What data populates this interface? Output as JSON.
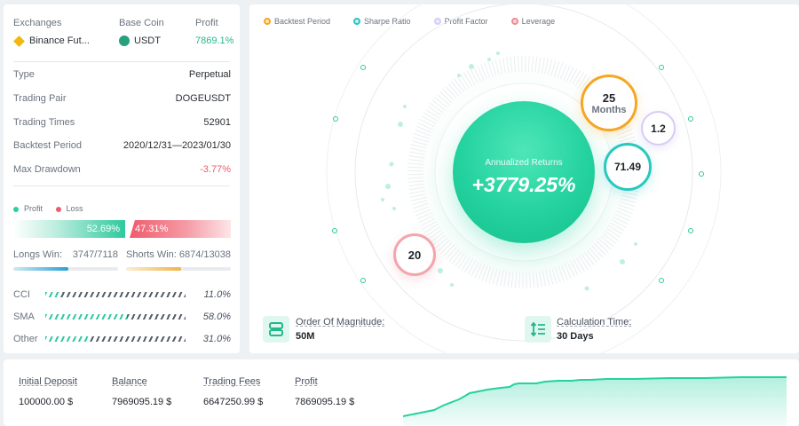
{
  "summary": {
    "headers": {
      "exchanges": "Exchanges",
      "base_coin": "Base Coin",
      "profit": "Profit"
    },
    "exchange": "Binance Fut...",
    "base_coin": "USDT",
    "profit": "7869.1%"
  },
  "details": [
    {
      "key": "Type",
      "value": "Perpetual"
    },
    {
      "key": "Trading Pair",
      "value": "DOGEUSDT"
    },
    {
      "key": "Trading Times",
      "value": "52901"
    },
    {
      "key": "Backtest Period",
      "value": "2020/12/31—2023/01/30"
    },
    {
      "key": "Max Drawdown",
      "value": "-3.77%"
    }
  ],
  "profit_loss": {
    "legend_profit": "Profit",
    "legend_loss": "Loss",
    "profit_pct": "52.69%",
    "loss_pct": "47.31%",
    "profit_fraction": 0.5269
  },
  "wins": {
    "longs_label": "Longs Win:",
    "longs_value": "3747/7118",
    "longs_fraction": 0.526,
    "shorts_label": "Shorts Win:",
    "shorts_value": "6874/13038",
    "shorts_fraction": 0.527
  },
  "indicators": [
    {
      "name": "CCI",
      "pct": "11.0%",
      "fraction": 0.11
    },
    {
      "name": "SMA",
      "pct": "58.0%",
      "fraction": 0.58
    },
    {
      "name": "Other",
      "pct": "31.0%",
      "fraction": 0.31
    }
  ],
  "chart_legend": [
    {
      "label": "Backtest Period",
      "color": "#f5a623"
    },
    {
      "label": "Sharpe Ratio",
      "color": "#28c8c0"
    },
    {
      "label": "Profit Factor",
      "color": "#c9b8f0"
    },
    {
      "label": "Leverage",
      "color": "#f08b94"
    }
  ],
  "annualized": {
    "label": "Annualized Returns",
    "value": "+3779.25%"
  },
  "bubbles": {
    "backtest_period": {
      "value": "25",
      "unit": "Months",
      "color": "#f5a623"
    },
    "profit_factor": {
      "value": "1.2",
      "color": "#c9b8f0"
    },
    "sharpe_ratio": {
      "value": "71.49",
      "color": "#28c8c0"
    },
    "leverage": {
      "value": "20",
      "color": "#f08b94"
    }
  },
  "magnitude": {
    "label": "Order Of Magnitude:",
    "value": "50M"
  },
  "calc_time": {
    "label": "Calculation Time:",
    "value": "30 Days"
  },
  "footer": [
    {
      "label": "Initial Deposit",
      "value": "100000.00 $"
    },
    {
      "label": "Balance",
      "value": "7969095.19 $"
    },
    {
      "label": "Trading Fees",
      "value": "6647250.99 $"
    },
    {
      "label": "Profit",
      "value": "7869095.19 $"
    }
  ],
  "accent": "#24d29f",
  "loss_color": "#f05b6c"
}
